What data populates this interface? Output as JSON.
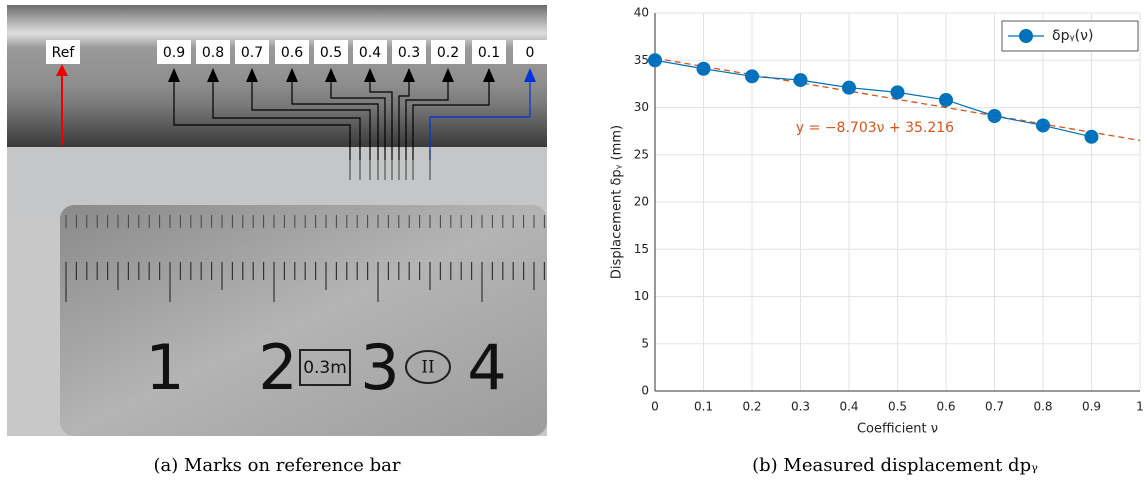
{
  "photo": {
    "reference_label": "Ref",
    "mark_labels": [
      "0.9",
      "0.8",
      "0.7",
      "0.6",
      "0.5",
      "0.4",
      "0.3",
      "0.2",
      "0.1",
      "0"
    ],
    "ruler_labels": [
      "1",
      "2",
      "3",
      "4"
    ],
    "ruler_marks": [
      "0.3m",
      "II"
    ]
  },
  "chart_data": {
    "type": "line",
    "xlabel": "Coefficient ν",
    "ylabel": "Displacement δpᵧ (mm)",
    "x": [
      0,
      0.1,
      0.2,
      0.3,
      0.4,
      0.5,
      0.6,
      0.7,
      0.8,
      0.9
    ],
    "series": [
      {
        "name": "δpᵧ(ν)",
        "color": "#0072bd",
        "values": [
          35.0,
          34.1,
          33.3,
          32.9,
          32.1,
          31.6,
          30.8,
          29.1,
          28.1,
          26.9
        ]
      }
    ],
    "fit": {
      "slope": -8.703,
      "intercept": 35.216,
      "color": "#d95319",
      "label": "y = −8.703ν + 35.216"
    },
    "xlim": [
      0,
      1
    ],
    "xticks": [
      0,
      0.1,
      0.2,
      0.3,
      0.4,
      0.5,
      0.6,
      0.7,
      0.8,
      0.9,
      1
    ],
    "ylim": [
      0,
      40
    ],
    "yticks": [
      0,
      5,
      10,
      15,
      20,
      25,
      30,
      35,
      40
    ],
    "grid": true,
    "legend": "top-right"
  },
  "captions": [
    "(a) Marks on reference bar",
    "(b) Measured displacement dpᵧ"
  ]
}
